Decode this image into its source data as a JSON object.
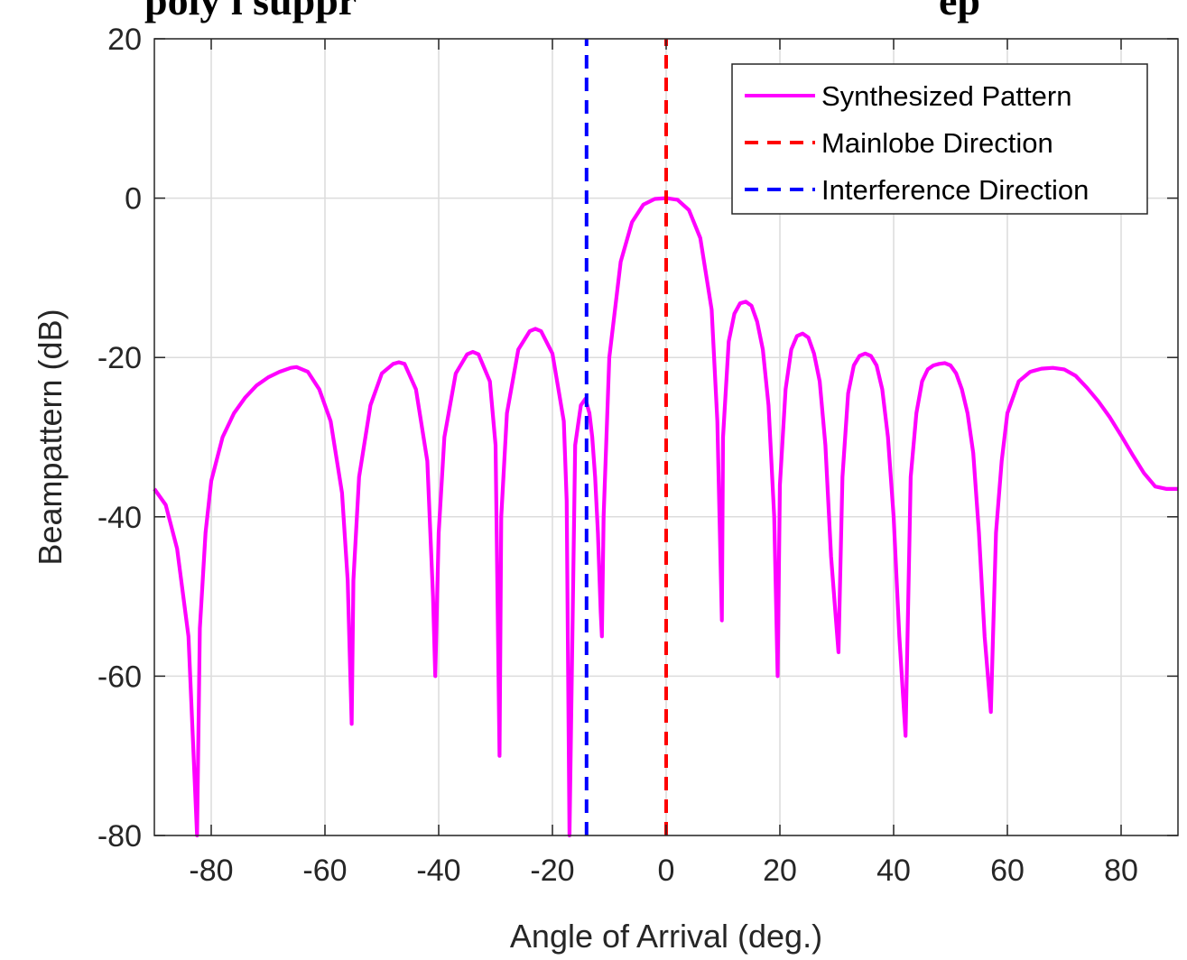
{
  "chart_data": {
    "type": "line",
    "title": "",
    "xlabel": "Angle of Arrival (deg.)",
    "ylabel": "Beampattern (dB)",
    "xlim": [
      -90,
      90
    ],
    "ylim": [
      -80,
      20
    ],
    "xticks": [
      -80,
      -60,
      -40,
      -20,
      0,
      20,
      40,
      60,
      80
    ],
    "yticks": [
      -80,
      -60,
      -40,
      -20,
      0,
      20
    ],
    "grid": true,
    "legend_position": "top-right",
    "series": [
      {
        "name": "Synthesized Pattern",
        "color": "#ff00ff",
        "style": "solid",
        "x": [
          -90,
          -88,
          -86,
          -84,
          -82.5,
          -82,
          -81,
          -80,
          -78,
          -76,
          -74,
          -72,
          -70,
          -68,
          -66,
          -65,
          -63,
          -61,
          -59,
          -57,
          -56,
          -55.3,
          -55,
          -54,
          -52,
          -50,
          -48,
          -47,
          -46,
          -44,
          -42,
          -41,
          -40.6,
          -40,
          -39,
          -37,
          -35,
          -34,
          -33,
          -31,
          -30,
          -29.3,
          -29,
          -28,
          -26,
          -24,
          -23,
          -22,
          -20,
          -18,
          -17.5,
          -17,
          -16,
          -15,
          -14.2,
          -13.5,
          -13,
          -12.5,
          -12,
          -11.5,
          -11.3,
          -11,
          -10,
          -8,
          -6,
          -4,
          -2,
          0,
          2,
          4,
          6,
          8,
          9,
          9.8,
          10,
          11,
          12,
          13,
          14,
          15,
          16,
          17,
          18,
          19,
          19.6,
          20,
          21,
          22,
          23,
          24,
          25,
          26,
          27,
          28,
          29,
          30.3,
          31,
          32,
          33,
          34,
          35,
          36,
          37,
          38,
          39,
          40,
          41,
          42.1,
          43,
          44,
          45,
          46,
          47,
          48,
          49,
          50,
          51,
          52,
          53,
          54,
          55,
          56,
          57.1,
          58,
          59,
          60,
          62,
          64,
          66,
          68,
          70,
          72,
          74,
          76,
          78,
          80,
          82,
          84,
          86,
          88,
          90
        ],
        "y": [
          -36.5,
          -38.5,
          -44,
          -55,
          -80,
          -54,
          -42,
          -35.5,
          -30,
          -27,
          -25,
          -23.5,
          -22.5,
          -21.8,
          -21.3,
          -21.2,
          -21.8,
          -24,
          -28,
          -37,
          -48,
          -66,
          -48,
          -35,
          -26,
          -22,
          -20.8,
          -20.6,
          -20.8,
          -24,
          -33,
          -50,
          -60,
          -42,
          -30,
          -22,
          -19.6,
          -19.3,
          -19.6,
          -23,
          -31,
          -70,
          -40,
          -27,
          -19,
          -16.7,
          -16.4,
          -16.7,
          -19.5,
          -28,
          -38,
          -80,
          -31,
          -26,
          -25.2,
          -27,
          -30,
          -35,
          -42,
          -52,
          -55,
          -40,
          -20,
          -8,
          -3,
          -0.8,
          -0.1,
          0,
          -0.2,
          -1.5,
          -5,
          -14,
          -28,
          -53,
          -30,
          -18,
          -14.5,
          -13.2,
          -13,
          -13.5,
          -15.5,
          -19,
          -26,
          -40,
          -60,
          -36,
          -24,
          -19,
          -17.3,
          -17,
          -17.5,
          -19.5,
          -23,
          -31,
          -45,
          -57,
          -35,
          -24.5,
          -21,
          -19.8,
          -19.5,
          -19.8,
          -21,
          -24,
          -30,
          -40,
          -55,
          -67.5,
          -35,
          -27,
          -23,
          -21.5,
          -21,
          -20.8,
          -20.7,
          -21,
          -22,
          -24,
          -27,
          -32,
          -42,
          -55,
          -64.5,
          -42,
          -33,
          -27,
          -23,
          -21.8,
          -21.4,
          -21.3,
          -21.5,
          -22.3,
          -23.8,
          -25.5,
          -27.5,
          -29.8,
          -32.2,
          -34.5,
          -36.2,
          -36.5,
          -36.5
        ]
      },
      {
        "name": "Mainlobe Direction",
        "color": "#ff0000",
        "style": "dashed",
        "x": [
          0,
          0
        ],
        "y": [
          -80,
          20
        ]
      },
      {
        "name": "Interference Direction",
        "color": "#0000ff",
        "style": "dashed",
        "x": [
          -14,
          -14
        ],
        "y": [
          -80,
          20
        ]
      }
    ]
  }
}
